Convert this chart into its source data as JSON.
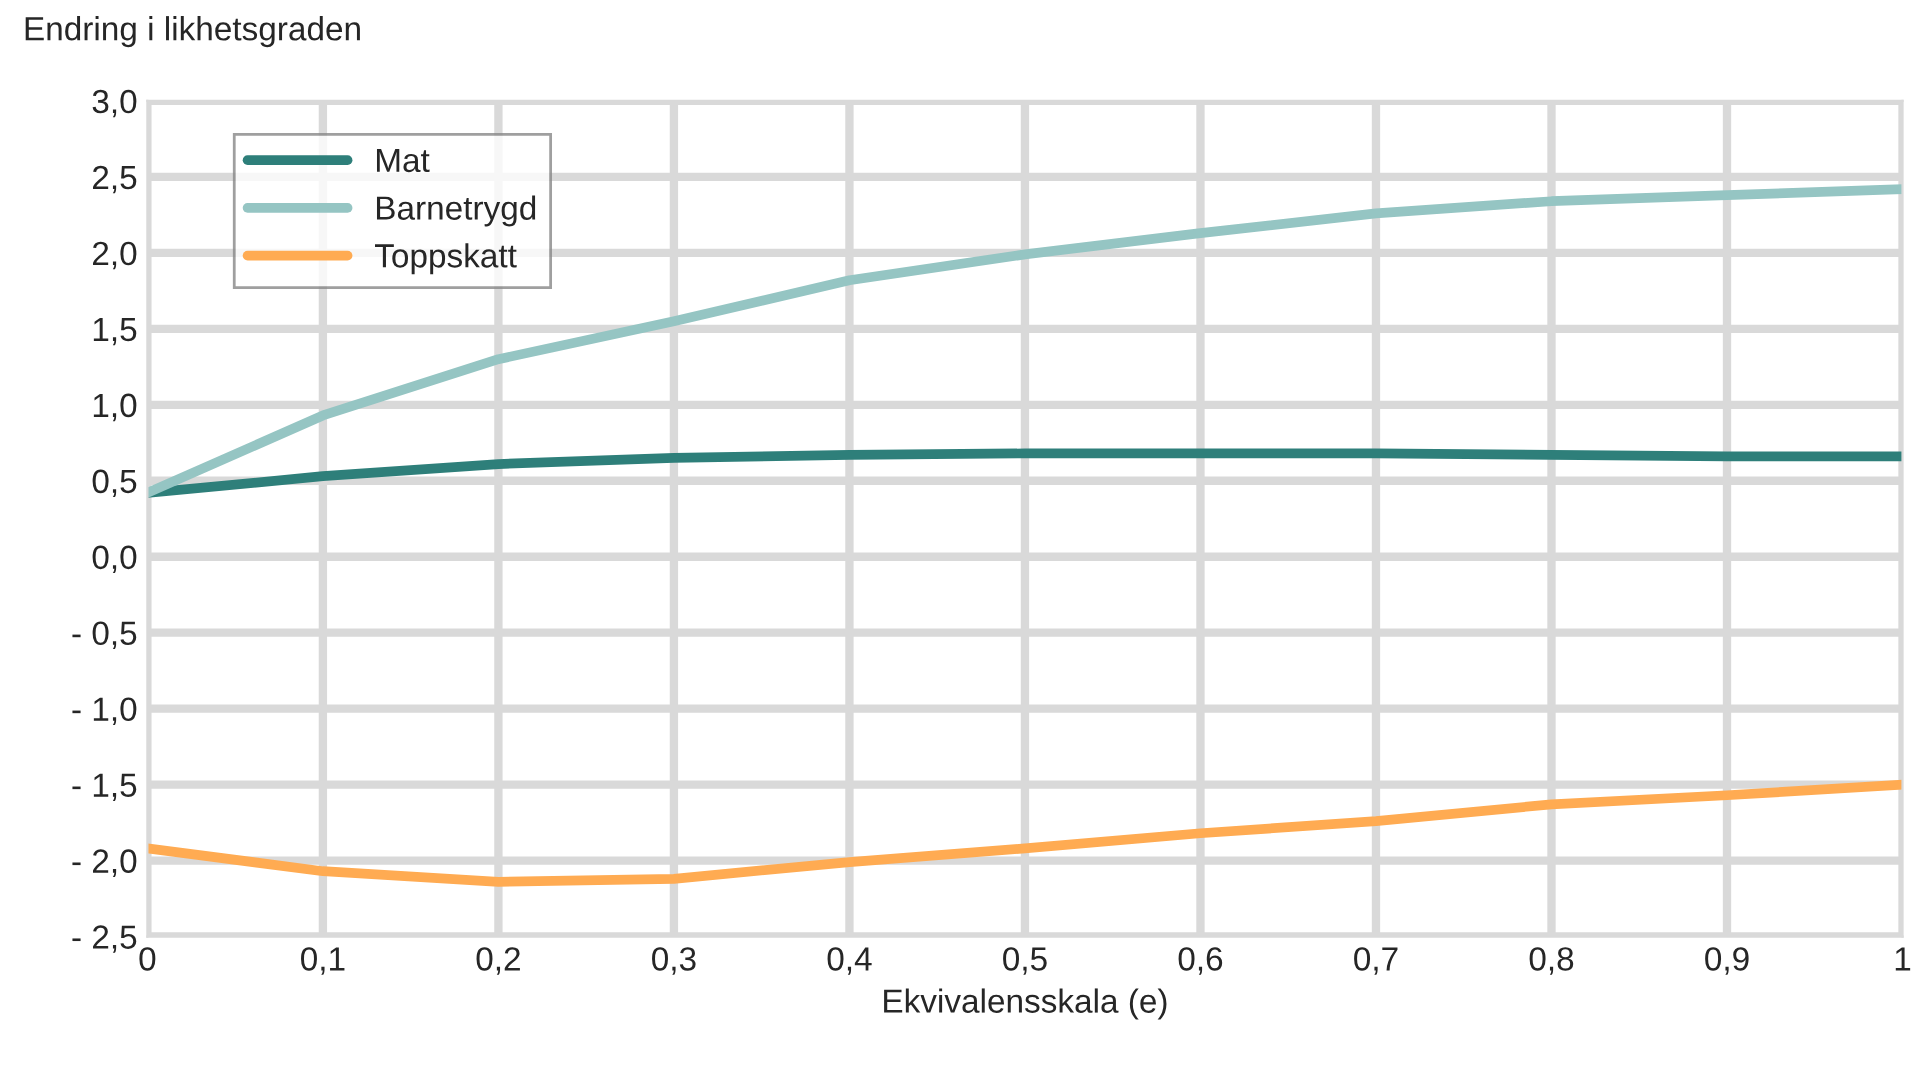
{
  "chart_data": {
    "type": "line",
    "ylabel": "Endring i likhetsgraden",
    "xlabel": "Ekvivalensskala (e)",
    "x": [
      0,
      0.1,
      0.2,
      0.3,
      0.4,
      0.5,
      0.6,
      0.7,
      0.8,
      0.9,
      1
    ],
    "series": [
      {
        "name": "Mat",
        "color": "#2e7f7a",
        "values": [
          0.42,
          0.53,
          0.61,
          0.65,
          0.67,
          0.68,
          0.68,
          0.68,
          0.67,
          0.66,
          0.66
        ]
      },
      {
        "name": "Barnetrygd",
        "color": "#95c5c3",
        "values": [
          0.42,
          0.93,
          1.3,
          1.55,
          1.82,
          1.99,
          2.13,
          2.26,
          2.34,
          2.38,
          2.42
        ]
      },
      {
        "name": "Toppskatt",
        "color": "#ffab52",
        "values": [
          -1.92,
          -2.07,
          -2.14,
          -2.12,
          -2.01,
          -1.92,
          -1.82,
          -1.74,
          -1.63,
          -1.57,
          -1.5
        ]
      }
    ],
    "xlim": [
      0,
      1
    ],
    "xticks": [
      0,
      {
        "value": 0.1,
        "label": "0,1"
      },
      {
        "value": 0.2,
        "label": "0,2"
      },
      {
        "value": 0.3,
        "label": "0,3"
      },
      {
        "value": 0.4,
        "label": "0,4"
      },
      {
        "value": 0.5,
        "label": "0,5"
      },
      {
        "value": 0.6,
        "label": "0,6"
      },
      {
        "value": 0.7,
        "label": "0,7"
      },
      {
        "value": 0.8,
        "label": "0,8"
      },
      {
        "value": 0.9,
        "label": "0,9"
      },
      1
    ],
    "ylim": [
      -2.5,
      3.0
    ],
    "yticks": [
      {
        "value": -2.5,
        "label": "- 2,5"
      },
      {
        "value": -2.0,
        "label": "- 2,0"
      },
      {
        "value": -1.5,
        "label": "- 1,5"
      },
      {
        "value": -1.0,
        "label": "- 1,0"
      },
      {
        "value": -0.5,
        "label": "- 0,5"
      },
      {
        "value": 0,
        "label": "0,0"
      },
      {
        "value": 0.5,
        "label": "0,5"
      },
      {
        "value": 1.0,
        "label": "1,0"
      },
      {
        "value": 1.5,
        "label": "1,5"
      },
      {
        "value": 2.0,
        "label": "2,0"
      },
      {
        "value": 2.5,
        "label": "2,5"
      },
      {
        "value": 3.0,
        "label": "3,0"
      }
    ],
    "grid": true,
    "legend": "top left",
    "marker": "none",
    "line_style": "solid"
  }
}
